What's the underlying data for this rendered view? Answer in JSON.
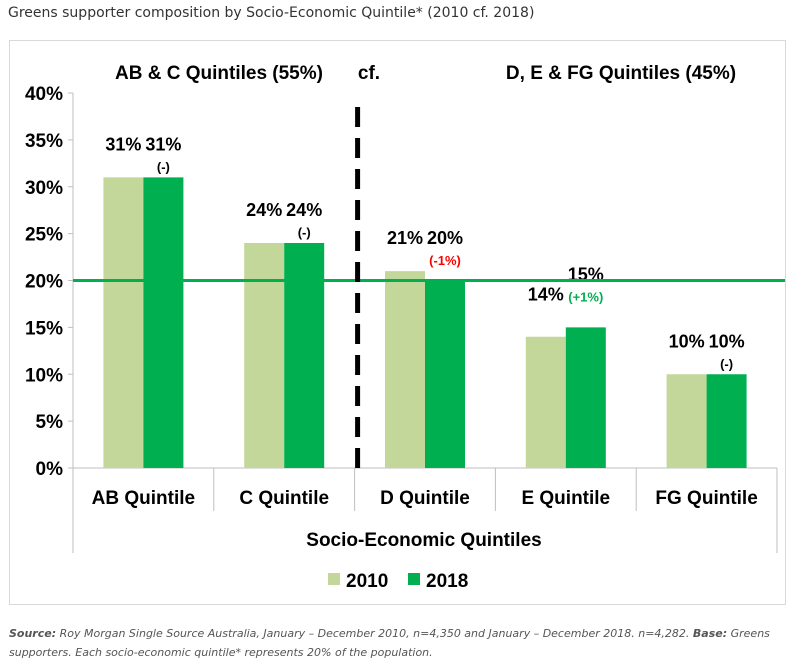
{
  "title": "Greens supporter composition by Socio-Economic Quintile* (2010 cf. 2018)",
  "chart_data": {
    "type": "bar",
    "title": "Greens supporter composition by Socio-Economic Quintile* (2010 cf. 2018)",
    "categories": [
      "AB Quintile",
      "C Quintile",
      "D Quintile",
      "E Quintile",
      "FG Quintile"
    ],
    "series": [
      {
        "name": "2010",
        "color": "#c4d79b",
        "values": [
          31,
          24,
          21,
          14,
          10
        ],
        "labels": [
          "31%",
          "24%",
          "21%",
          "14%",
          "10%"
        ]
      },
      {
        "name": "2018",
        "color": "#00b050",
        "values": [
          31,
          24,
          20,
          15,
          10
        ],
        "labels": [
          "31%",
          "24%",
          "20%",
          "15%",
          "10%"
        ]
      }
    ],
    "change_labels": [
      "(-)",
      "(-)",
      "(-1%)",
      "(+1%)",
      "(-)"
    ],
    "change_colors": [
      "#000000",
      "#000000",
      "#ff0000",
      "#00b050",
      "#000000"
    ],
    "reference_line": {
      "value": 20,
      "color": "#00b050"
    },
    "group_labels": [
      "AB & C Quintiles (55%)",
      "cf.",
      "D, E & FG Quintiles (45%)"
    ],
    "ylim": [
      0,
      40
    ],
    "yticks": [
      "0%",
      "5%",
      "10%",
      "15%",
      "20%",
      "25%",
      "30%",
      "35%",
      "40%"
    ],
    "xlabel": "Socio-Economic Quintiles",
    "ylabel": "",
    "legend_position": "bottom",
    "grid": false
  },
  "footnote": {
    "source_label": "Source:",
    "source_text": " Roy Morgan Single Source Australia, January – December 2010, n=4,350 and January – December 2018. n=4,282. ",
    "base_label": "Base:",
    "base_text": " Greens supporters. Each socio-economic quintile* represents 20% of the population."
  }
}
